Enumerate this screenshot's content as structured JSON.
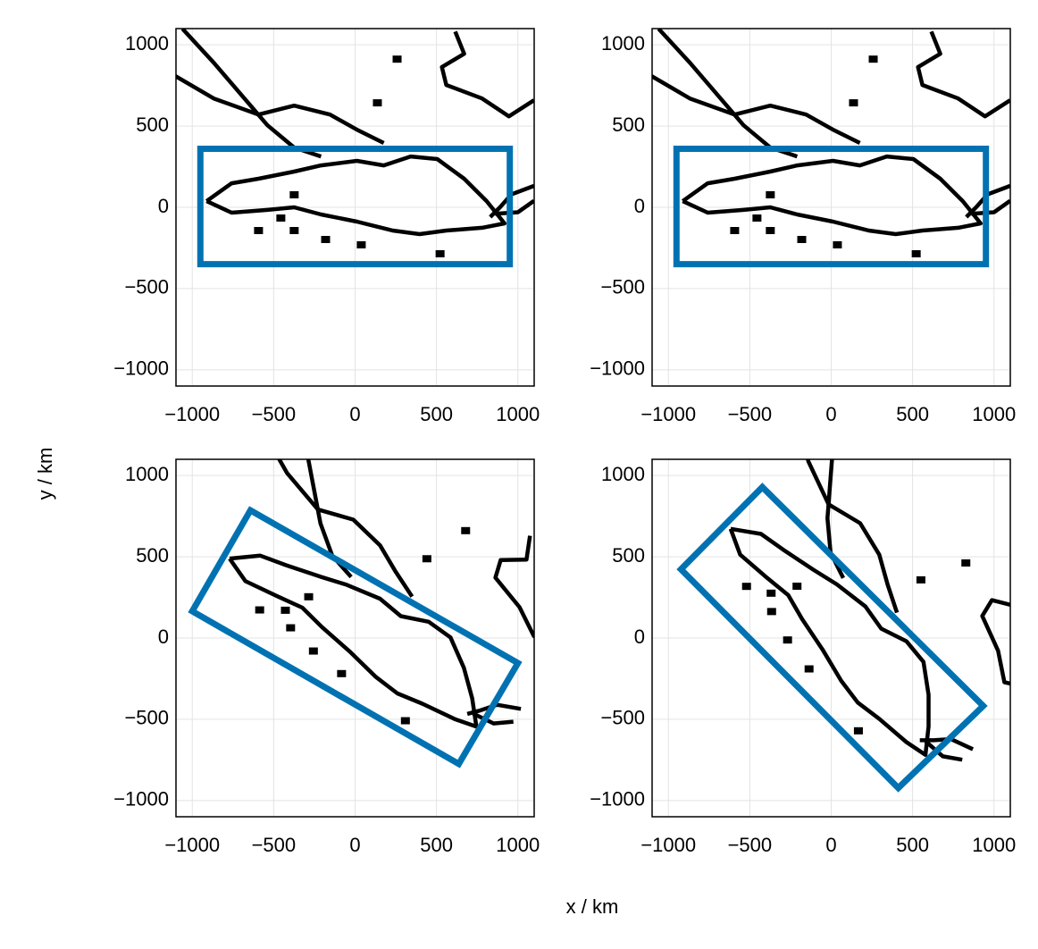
{
  "figure": {
    "xlabel": "x / km",
    "ylabel": "y / km"
  },
  "chart_data": [
    {
      "type": "map",
      "xlim": [
        -1100,
        1100
      ],
      "ylim": [
        -1100,
        1100
      ],
      "xticks": [
        {
          "value": -1000,
          "label": "−1000"
        },
        {
          "value": -500,
          "label": "−500"
        },
        0,
        500,
        1000
      ],
      "yticks": [
        {
          "value": -1000,
          "label": "−1000"
        },
        {
          "value": -500,
          "label": "−500"
        },
        0,
        500,
        1000
      ],
      "grid": true,
      "coast_color": "#000000",
      "coastlines": [
        {
          "x": [
            -912,
            -758,
            -593,
            -374,
            -209,
            11,
            176,
            341,
            505,
            670,
            808,
            918,
            780,
            560,
            396,
            231,
            11,
            -209,
            -374,
            -538,
            -758,
            -912
          ],
          "y": [
            38,
            148,
            176,
            220,
            258,
            286,
            258,
            313,
            297,
            176,
            38,
            -99,
            -126,
            -143,
            -165,
            -143,
            -88,
            -44,
            0,
            -16,
            -33,
            38
          ]
        },
        {
          "x": [
            -1104,
            -868,
            -593,
            -374,
            -154,
            11,
            176
          ],
          "y": [
            808,
            670,
            571,
            626,
            571,
            478,
            396
          ]
        },
        {
          "x": [
            -1060,
            -868,
            -538,
            -374,
            -209
          ],
          "y": [
            1099,
            890,
            505,
            368,
            313
          ]
        },
        {
          "x": [
            615,
            670,
            533,
            560,
            780,
            945,
            1099
          ],
          "y": [
            1082,
            945,
            863,
            753,
            670,
            560,
            659
          ]
        },
        {
          "x": [
            1099,
            960,
            890,
            830
          ],
          "y": [
            132,
            80,
            0,
            -60
          ]
        },
        {
          "x": [
            860,
            1000,
            1099
          ],
          "y": [
            -40,
            -30,
            40
          ]
        }
      ],
      "islands": {
        "x": [
          258,
          137,
          -374,
          -456,
          -593,
          -374,
          -181,
          38,
          522
        ],
        "y": [
          912,
          643,
          77,
          -66,
          -143,
          -143,
          -198,
          -231,
          -286
        ]
      },
      "region": {
        "color": "#0072b2",
        "x": [
          -950,
          950,
          950,
          -950
        ],
        "y": [
          360,
          360,
          -350,
          -350
        ]
      }
    },
    {
      "type": "map",
      "xlim": [
        -1100,
        1100
      ],
      "ylim": [
        -1100,
        1100
      ],
      "xticks": [
        {
          "value": -1000,
          "label": "−1000"
        },
        {
          "value": -500,
          "label": "−500"
        },
        0,
        500,
        1000
      ],
      "yticks": [
        {
          "value": -1000,
          "label": "−1000"
        },
        {
          "value": -500,
          "label": "−500"
        },
        0,
        500,
        1000
      ],
      "grid": true,
      "coast_color": "#000000",
      "coastlines": [
        {
          "x": [
            -912,
            -758,
            -593,
            -374,
            -209,
            11,
            176,
            341,
            505,
            670,
            808,
            918,
            780,
            560,
            396,
            231,
            11,
            -209,
            -374,
            -538,
            -758,
            -912
          ],
          "y": [
            38,
            148,
            176,
            220,
            258,
            286,
            258,
            313,
            297,
            176,
            38,
            -99,
            -126,
            -143,
            -165,
            -143,
            -88,
            -44,
            0,
            -16,
            -33,
            38
          ]
        },
        {
          "x": [
            -1104,
            -868,
            -593,
            -374,
            -154,
            11,
            176
          ],
          "y": [
            808,
            670,
            571,
            626,
            571,
            478,
            396
          ]
        },
        {
          "x": [
            -1060,
            -868,
            -538,
            -374,
            -209
          ],
          "y": [
            1099,
            890,
            505,
            368,
            313
          ]
        },
        {
          "x": [
            615,
            670,
            533,
            560,
            780,
            945,
            1099
          ],
          "y": [
            1082,
            945,
            863,
            753,
            670,
            560,
            659
          ]
        },
        {
          "x": [
            1099,
            960,
            890,
            830
          ],
          "y": [
            132,
            80,
            0,
            -60
          ]
        },
        {
          "x": [
            860,
            1000,
            1099
          ],
          "y": [
            -40,
            -30,
            40
          ]
        }
      ],
      "islands": {
        "x": [
          258,
          137,
          -374,
          -456,
          -593,
          -374,
          -181,
          38,
          522
        ],
        "y": [
          912,
          643,
          77,
          -66,
          -143,
          -143,
          -198,
          -231,
          -286
        ]
      },
      "region": {
        "color": "#0072b2",
        "x": [
          -950,
          950,
          950,
          -950
        ],
        "y": [
          360,
          360,
          -350,
          -350
        ]
      }
    },
    {
      "type": "map",
      "xlim": [
        -1100,
        1100
      ],
      "ylim": [
        -1100,
        1100
      ],
      "xticks": [
        {
          "value": -1000,
          "label": "−1000"
        },
        {
          "value": -500,
          "label": "−500"
        },
        0,
        500,
        1000
      ],
      "yticks": [
        {
          "value": -1000,
          "label": "−1000"
        },
        {
          "value": -500,
          "label": "−500"
        },
        0,
        500,
        1000
      ],
      "grid": true,
      "coast_color": "#000000",
      "coastlines": [
        {
          "x": [
            -771,
            -582,
            -426,
            -214,
            -52,
            153,
            281,
            452,
            586,
            668,
            719,
            745,
            612,
            413,
            260,
            128,
            -34,
            -203,
            -324,
            -474,
            -673,
            -771
          ],
          "y": [
            489,
            507,
            449,
            378,
            328,
            242,
            135,
            100,
            4,
            -183,
            -371,
            -545,
            -499,
            -404,
            -341,
            -240,
            -82,
            67,
            187,
            255,
            350,
            489
          ]
        },
        {
          "x": [
            -552,
            -417,
            -228,
            -11,
            153,
            249,
            350
          ],
          "y": [
            1252,
            1014,
            791,
            729,
            571,
            408,
            255
          ]
        },
        {
          "x": [
            -368,
            -307,
            -213,
            -140,
            -24
          ],
          "y": [
            1482,
            1205,
            706,
            506,
            376
          ]
        },
        {
          "x": [
            1074,
            1053,
            894,
            862,
            1010,
            1098,
            1282
          ],
          "y": [
            629,
            483,
            480,
            372,
            190,
            12,
            21
          ]
        },
        {
          "x": [
            1018,
            871,
            771,
            689
          ],
          "y": [
            -436,
            -411,
            -445,
            -467
          ]
        },
        {
          "x": [
            725,
            851,
            972
          ],
          "y": [
            -465,
            -526,
            -515
          ]
        }
      ],
      "islands": {
        "x": [
          679,
          441,
          -285,
          -428,
          -586,
          -396,
          -256,
          -83,
          309
        ],
        "y": [
          661,
          488,
          254,
          171,
          173,
          63,
          -80,
          -219,
          -509
        ]
      },
      "region": {
        "color": "#0072b2",
        "x": [
          -643,
          1000,
          637,
          -1000
        ],
        "y": [
          786,
          -154,
          -775,
          165
        ]
      }
    },
    {
      "type": "map",
      "xlim": [
        -1100,
        1100
      ],
      "ylim": [
        -1100,
        1100
      ],
      "xticks": [
        {
          "value": -1000,
          "label": "−1000"
        },
        {
          "value": -500,
          "label": "−500"
        },
        0,
        500,
        1000
      ],
      "yticks": [
        {
          "value": -1000,
          "label": "−1000"
        },
        {
          "value": -500,
          "label": "−500"
        },
        0,
        500,
        1000
      ],
      "grid": true,
      "coast_color": "#000000",
      "coastlines": [
        {
          "x": [
            -618,
            -431,
            -295,
            -109,
            35,
            210,
            307,
            462,
            567,
            598,
            598,
            579,
            462,
            295,
            163,
            62,
            -54,
            -179,
            -264,
            -392,
            -559,
            -618
          ],
          "y": [
            672,
            641,
            544,
            420,
            330,
            194,
            58,
            -20,
            -147,
            -349,
            -544,
            -719,
            -641,
            -497,
            -397,
            -264,
            -70,
            117,
            264,
            369,
            513,
            672
          ]
        },
        {
          "x": [
            -209,
            -140,
            -16,
            178,
            295,
            346,
            404
          ],
          "y": [
            1352,
            1087,
            823,
            707,
            513,
            330,
            156
          ]
        },
        {
          "x": [
            28,
            16,
            -23,
            -4,
            74
          ],
          "y": [
            1526,
            1243,
            737,
            525,
            369
          ]
        },
        {
          "x": [
            1200,
            1142,
            987,
            928,
            1025,
            1064,
            1243
          ],
          "y": [
            330,
            194,
            233,
            136,
            -78,
            -272,
            -311
          ]
        },
        {
          "x": [
            870,
            735,
            629,
            544
          ],
          "y": [
            -684,
            -622,
            -629,
            -629
          ]
        },
        {
          "x": [
            580,
            686,
            805
          ],
          "y": [
            -636,
            -728,
            -749
          ]
        }
      ],
      "islands": {
        "x": [
          827,
          551,
          -210,
          -369,
          -520,
          -366,
          -268,
          -136,
          167
        ],
        "y": [
          462,
          358,
          319,
          276,
          318,
          163,
          -12,
          -190,
          -571
        ]
      },
      "region": {
        "color": "#0072b2",
        "x": [
          -423,
          934,
          412,
          -923
        ],
        "y": [
          929,
          -418,
          -923,
          423
        ]
      }
    }
  ]
}
